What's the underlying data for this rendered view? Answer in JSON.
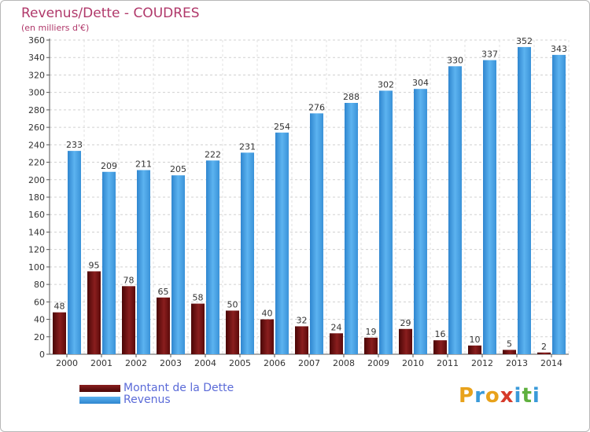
{
  "header": {
    "title": "Revenus/Dette - COUDRES",
    "subtitle": "(en milliers d'€)"
  },
  "legend": {
    "items": [
      {
        "label": "Montant de la Dette",
        "color": "#6b0c0c"
      },
      {
        "label": "Revenus",
        "color": "#4aa3e4"
      }
    ]
  },
  "logo": {
    "letters": [
      "P",
      "r",
      "o",
      "x",
      "i",
      "t",
      "i"
    ],
    "colors": [
      "#e8a21b",
      "#3a9ad9",
      "#e8a21b",
      "#d63a2a",
      "#3a9ad9",
      "#5fb03e",
      "#3a9ad9"
    ]
  },
  "chart_data": {
    "type": "bar",
    "title": "Revenus/Dette - COUDRES",
    "subtitle": "(en milliers d'€)",
    "xlabel": "",
    "ylabel": "",
    "ylim": [
      0,
      360
    ],
    "ytick_step": 20,
    "grid": true,
    "legend_position": "bottom-left",
    "categories": [
      "2000",
      "2001",
      "2002",
      "2003",
      "2004",
      "2005",
      "2006",
      "2007",
      "2008",
      "2009",
      "2010",
      "2011",
      "2012",
      "2013",
      "2014"
    ],
    "series": [
      {
        "name": "Montant de la Dette",
        "color": "#6b0c0c",
        "values": [
          48,
          95,
          78,
          65,
          58,
          50,
          40,
          32,
          24,
          19,
          29,
          16,
          10,
          5,
          2
        ]
      },
      {
        "name": "Revenus",
        "color": "#4aa3e4",
        "values": [
          233,
          209,
          211,
          205,
          222,
          231,
          254,
          276,
          288,
          302,
          304,
          330,
          337,
          352,
          343
        ]
      }
    ]
  }
}
